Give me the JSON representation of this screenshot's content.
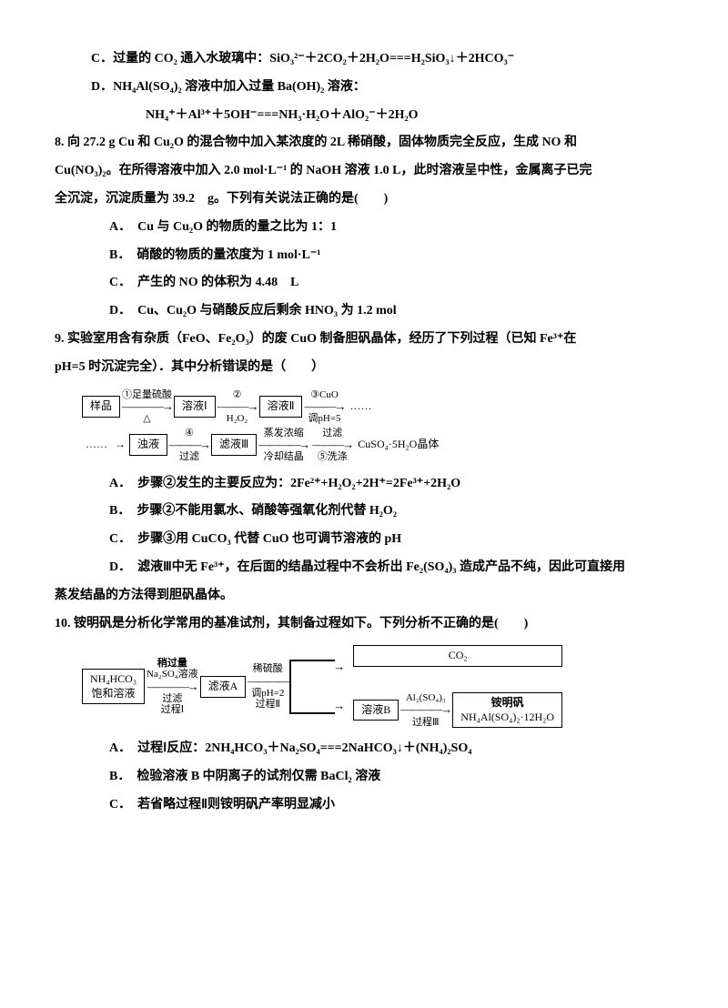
{
  "q7": {
    "C": "C．过量的 CO₂ 通入水玻璃中：SiO₃²⁻＋2CO₂＋2H₂O===H₂SiO₃↓＋2HCO₃⁻",
    "D1": "D．NH₄Al(SO₄)₂ 溶液中加入过量 Ba(OH)₂ 溶液：",
    "D2": "NH₄⁺＋Al³⁺＋5OH⁻===NH₃·H₂O＋AlO₂⁻＋2H₂O"
  },
  "q8": {
    "stem1": "8. 向 27.2 g Cu 和 Cu₂O 的混合物中加入某浓度的 2L 稀硝酸，固体物质完全反应，生成 NO 和",
    "stem2": "Cu(NO₃)₂。在所得溶液中加入 2.0 mol·L⁻¹ 的 NaOH 溶液 1.0 L，此时溶液呈中性，金属离子已完",
    "stem3": "全沉淀，沉淀质量为 39.2　g。下列有关说法正确的是(　　)",
    "A": "A．　Cu 与 Cu₂O 的物质的量之比为 1：1",
    "B": "B．　硝酸的物质的量浓度为 1 mol·L⁻¹",
    "C": "C．　产生的 NO 的体积为 4.48　L",
    "D": "D．　Cu、Cu₂O 与硝酸反应后剩余 HNO₃ 为 1.2 mol"
  },
  "q9": {
    "stem1": "9. 实验室用含有杂质（FeO、Fe₂O₃）的废 CuO 制备胆矾晶体，经历了下列过程（已知 Fe³⁺在",
    "stem2": "pH=5 时沉淀完全）．其中分析错误的是（　　）",
    "d1": {
      "b1": "样品",
      "a1t": "①足量硫酸",
      "a1b": "△",
      "b2": "溶液Ⅰ",
      "a2t": "②",
      "a2b": "H₂O₂",
      "b3": "溶液Ⅱ",
      "a3t": "③CuO",
      "a3b": "调pH=5",
      "tail": "……"
    },
    "d2": {
      "head": "……",
      "b1": "浊液",
      "a1t": "④",
      "a1b": "过滤",
      "b2": "滤液Ⅲ",
      "a2t": "蒸发浓缩",
      "a2b": "冷却结晶",
      "a3t": "过滤",
      "a3b": "⑤洗涤",
      "tail": "CuSO₄·5H₂O晶体"
    },
    "A": "A．　步骤②发生的主要反应为：2Fe²⁺+H₂O₂+2H⁺=2Fe³⁺+2H₂O",
    "B": "B．　步骤②不能用氯水、硝酸等强氧化剂代替 H₂O₂",
    "C": "C．　步骤③用 CuCO₃ 代替 CuO 也可调节溶液的 pH",
    "D1": "D．　滤液Ⅲ中无 Fe³⁺，在后面的结晶过程中不会析出 Fe₂(SO₄)₃ 造成产品不纯，因此可直接用",
    "D2": "蒸发结晶的方法得到胆矾晶体。"
  },
  "q10": {
    "stem": "10. 铵明矾是分析化学常用的基准试剂，其制备过程如下。下列分析不正确的是(　　)",
    "d": {
      "b1a": "NH₄HCO₃",
      "b1b": "饱和溶液",
      "a1t": "稍过量",
      "a1m": "Na₂SO₄溶液",
      "a1b": "过滤",
      "a1c": "过程Ⅰ",
      "b2": "滤液A",
      "a2t": "稀硫酸",
      "a2b": "调pH=2",
      "a2c": "过程Ⅱ",
      "topout": "CO₂",
      "b3": "溶液B",
      "a3t": "Al₂(SO₄)₃",
      "a3b": "过程Ⅲ",
      "b4a": "铵明矾",
      "b4b": "NH₄Al(SO₄)₂·12H₂O"
    },
    "A": "A．　过程Ⅰ反应：2NH₄HCO₃＋Na₂SO₄===2NaHCO₃↓＋(NH₄)₂SO₄",
    "B": "B．　检验溶液 B 中阴离子的试剂仅需 BaCl₂ 溶液",
    "C": "C．　若省略过程Ⅱ则铵明矾产率明显减小"
  }
}
